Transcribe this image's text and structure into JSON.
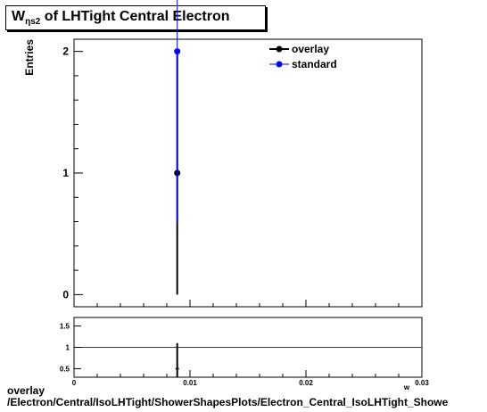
{
  "title": {
    "main": "W",
    "sub": "ηs2",
    "rest": " of LHTight Central  Electron"
  },
  "main_plot": {
    "ylabel": "Entries",
    "yticks": [
      "0",
      "1",
      "2"
    ],
    "legend": [
      "overlay",
      "standard"
    ]
  },
  "ratio_plot": {
    "yticks": [
      "0.5",
      "1",
      "1.5"
    ],
    "xticks": [
      "0",
      "0.01",
      "0.02",
      "0.03"
    ],
    "xlabel_fragment": "w"
  },
  "footer": {
    "line1": "overlay",
    "line2": "/Electron/Central/IsoLHTight/ShowerShapesPlots/Electron_Central_IsoLHTight_Showe"
  },
  "colors": {
    "overlay": "#000000",
    "standard": "#0000ff",
    "reference_line": "#cc0000"
  },
  "chart_data": [
    {
      "type": "scatter",
      "title": "W ηs2 of LHTight Central  Electron",
      "xlabel": "",
      "ylabel": "Entries",
      "xlim": [
        0,
        0.03
      ],
      "ylim": [
        -0.1,
        2.1
      ],
      "series": [
        {
          "name": "overlay",
          "x": [
            0.0089
          ],
          "y": [
            1
          ],
          "yerr": [
            1
          ]
        },
        {
          "name": "standard",
          "x": [
            0.0089
          ],
          "y": [
            2
          ],
          "yerr": [
            1.41
          ]
        }
      ],
      "legend": "top-right",
      "grid": false
    },
    {
      "type": "scatter",
      "xlabel": "w",
      "ylabel": "",
      "xlim": [
        0,
        0.03
      ],
      "ylim": [
        0.3,
        1.7
      ],
      "reference_line": 1,
      "series": [
        {
          "name": "ratio",
          "x": [
            0.0089
          ],
          "y": [
            0.5
          ],
          "yerr": [
            0.6
          ]
        }
      ]
    }
  ]
}
